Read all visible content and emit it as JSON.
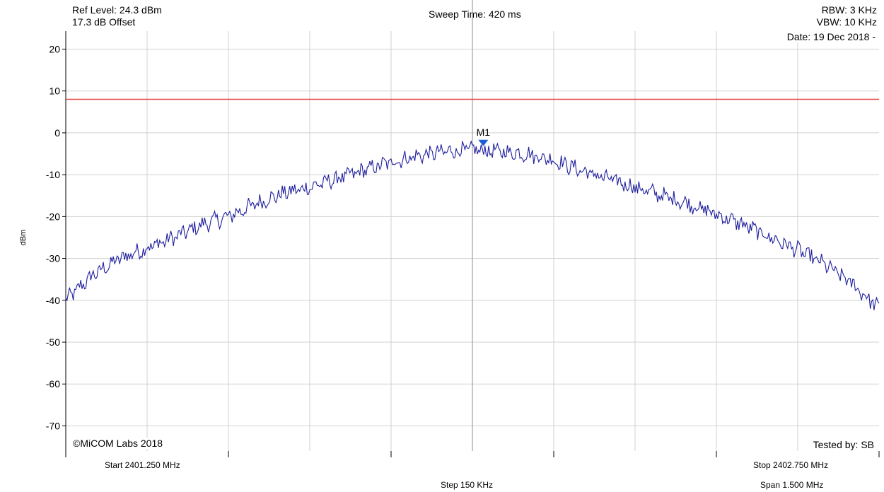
{
  "header": {
    "ref_level": "Ref Level: 24.3 dBm",
    "offset": "17.3 dB Offset",
    "sweep_time": "Sweep Time: 420 ms",
    "rbw": "RBW: 3 KHz",
    "vbw": "VBW: 10 KHz",
    "date": "Date: 19 Dec 2018 -"
  },
  "footer": {
    "copyright": "©MiCOM Labs 2018",
    "tested_by": "Tested by: SB",
    "start": "Start 2401.250 MHz",
    "stop": "Stop 2402.750 MHz",
    "step": "Step 150 KHz",
    "span": "Span 1.500 MHz"
  },
  "chart_data": {
    "type": "line",
    "ylabel": "dBm",
    "xlabel": "",
    "xlim": [
      2401.25,
      2402.75
    ],
    "ylim": [
      -76,
      24.3
    ],
    "yticks": [
      20,
      10,
      0,
      -10,
      -20,
      -30,
      -40,
      -50,
      -60,
      -70
    ],
    "xtick_step_mhz": 0.15,
    "grid": true,
    "colors": {
      "trace": "#1f1f9e",
      "limit": "#e64545",
      "grid": "#d0d0d0",
      "center": "#a0a0a0",
      "marker": "#1a5fd6"
    },
    "limit_line": 8,
    "marker": {
      "label": "M1",
      "x": 2402.02,
      "y": -2.0
    },
    "series": [
      {
        "x": [
          2401.25,
          2401.3,
          2401.35,
          2401.4,
          2401.45,
          2401.5,
          2401.55,
          2401.6,
          2401.65,
          2401.7,
          2401.75,
          2401.8,
          2401.85,
          2401.9,
          2401.95,
          2402.0,
          2402.05,
          2402.1,
          2402.15,
          2402.2,
          2402.25,
          2402.3,
          2402.35,
          2402.4,
          2402.45,
          2402.5,
          2402.55,
          2402.6,
          2402.65,
          2402.7,
          2402.75
        ],
        "values": [
          -40,
          -34,
          -30,
          -27.5,
          -25,
          -22,
          -20,
          -17,
          -14.5,
          -13,
          -11,
          -9,
          -7,
          -5.5,
          -4.5,
          -4,
          -4.5,
          -5,
          -6.5,
          -9,
          -11,
          -13,
          -15,
          -17,
          -19.5,
          -22,
          -25,
          -28,
          -31.5,
          -36,
          -42
        ]
      }
    ]
  }
}
